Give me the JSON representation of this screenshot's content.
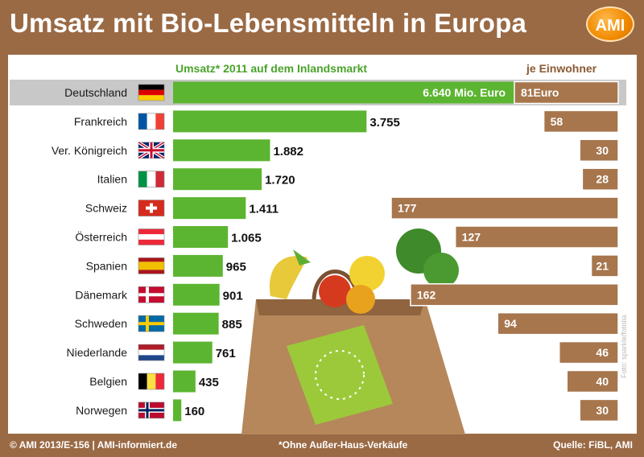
{
  "title": "Umsatz mit Bio-Lebensmitteln in Europa",
  "logo_text": "AMI",
  "footer": {
    "left": "© AMI 2013/E-156 | AMI-informiert.de",
    "middle": "*Ohne Außer-Haus-Verkäufe",
    "right": "Quelle: FiBL, AMI"
  },
  "photo_credit": "Foto: sparkle/fotolia",
  "colors": {
    "background": "#9a6a45",
    "green_bar": "#5cb531",
    "brown_bar": "#a7764d",
    "highlight_row": "#c8c8c8",
    "subtitle_green": "#4aa32a",
    "subtitle_brown": "#8b5a33"
  },
  "chart_data": {
    "type": "bar",
    "headers": {
      "left": "Umsatz* 2011 auf dem Inlandsmarkt",
      "right": "je Einwohner"
    },
    "categories": [
      "Deutschland",
      "Frankreich",
      "Ver. Königreich",
      "Italien",
      "Schweiz",
      "Österreich",
      "Spanien",
      "Dänemark",
      "Schweden",
      "Niederlande",
      "Belgien",
      "Norwegen"
    ],
    "flags": [
      "de",
      "fr",
      "uk",
      "it",
      "ch",
      "at",
      "es",
      "dk",
      "se",
      "nl",
      "be",
      "no"
    ],
    "highlight_index": 0,
    "series": [
      {
        "name": "Umsatz* 2011 auf dem Inlandsmarkt",
        "values": [
          6640,
          3755,
          1882,
          1720,
          1411,
          1065,
          965,
          901,
          885,
          761,
          435,
          160
        ],
        "labels": [
          "6.640 Mio. Euro",
          "3.755",
          "1.882",
          "1.720",
          "1.411",
          "1.065",
          "965",
          "901",
          "885",
          "761",
          "435",
          "160"
        ]
      },
      {
        "name": "je Einwohner",
        "values": [
          81,
          58,
          30,
          28,
          177,
          127,
          21,
          162,
          94,
          46,
          40,
          30
        ],
        "labels": [
          "81Euro",
          "58",
          "30",
          "28",
          "177",
          "127",
          "21",
          "162",
          "94",
          "46",
          "40",
          "30"
        ]
      }
    ]
  }
}
